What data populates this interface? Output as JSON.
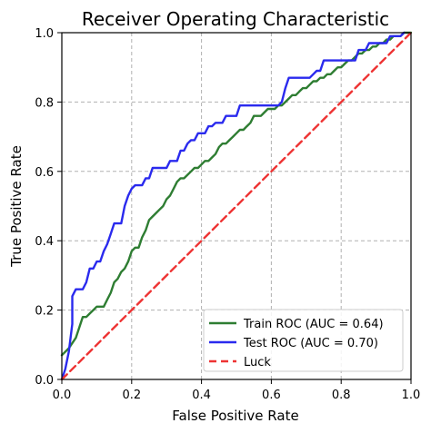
{
  "chart_data": {
    "type": "line",
    "title": "Receiver Operating Characteristic",
    "xlabel": "False Positive Rate",
    "ylabel": "True Positive Rate",
    "xlim": [
      0,
      1
    ],
    "ylim": [
      0,
      1
    ],
    "xticks": [
      "0.0",
      "0.2",
      "0.4",
      "0.6",
      "0.8",
      "1.0"
    ],
    "yticks": [
      "0.0",
      "0.2",
      "0.4",
      "0.6",
      "0.8",
      "1.0"
    ],
    "grid": true,
    "legend_position": "lower-right",
    "series": [
      {
        "name": "Train ROC (AUC = 0.64)",
        "color": "#2e7d32",
        "style": "solid",
        "x": [
          0.0,
          0.02,
          0.04,
          0.05,
          0.06,
          0.07,
          0.08,
          0.09,
          0.1,
          0.11,
          0.12,
          0.13,
          0.14,
          0.15,
          0.16,
          0.17,
          0.18,
          0.19,
          0.2,
          0.21,
          0.22,
          0.23,
          0.24,
          0.25,
          0.26,
          0.27,
          0.28,
          0.29,
          0.3,
          0.31,
          0.32,
          0.33,
          0.34,
          0.35,
          0.36,
          0.37,
          0.38,
          0.39,
          0.4,
          0.41,
          0.42,
          0.43,
          0.44,
          0.45,
          0.46,
          0.47,
          0.48,
          0.49,
          0.5,
          0.51,
          0.52,
          0.53,
          0.54,
          0.55,
          0.56,
          0.57,
          0.58,
          0.59,
          0.6,
          0.61,
          0.62,
          0.63,
          0.64,
          0.65,
          0.66,
          0.67,
          0.68,
          0.69,
          0.7,
          0.71,
          0.72,
          0.73,
          0.74,
          0.75,
          0.76,
          0.77,
          0.78,
          0.79,
          0.8,
          0.81,
          0.82,
          0.83,
          0.84,
          0.85,
          0.86,
          0.87,
          0.88,
          0.89,
          0.9,
          0.91,
          0.92,
          0.93,
          0.94,
          0.95,
          0.96,
          0.97,
          0.98,
          0.99,
          1.0
        ],
        "y": [
          0.07,
          0.09,
          0.12,
          0.15,
          0.18,
          0.18,
          0.19,
          0.2,
          0.21,
          0.21,
          0.21,
          0.23,
          0.25,
          0.28,
          0.29,
          0.31,
          0.32,
          0.34,
          0.37,
          0.38,
          0.38,
          0.41,
          0.43,
          0.46,
          0.47,
          0.48,
          0.49,
          0.5,
          0.52,
          0.53,
          0.55,
          0.57,
          0.58,
          0.58,
          0.59,
          0.6,
          0.61,
          0.61,
          0.62,
          0.63,
          0.63,
          0.64,
          0.65,
          0.67,
          0.68,
          0.68,
          0.69,
          0.7,
          0.71,
          0.72,
          0.72,
          0.73,
          0.74,
          0.76,
          0.76,
          0.76,
          0.77,
          0.78,
          0.78,
          0.78,
          0.79,
          0.79,
          0.8,
          0.81,
          0.82,
          0.82,
          0.83,
          0.84,
          0.84,
          0.85,
          0.86,
          0.86,
          0.87,
          0.87,
          0.88,
          0.88,
          0.89,
          0.9,
          0.9,
          0.91,
          0.92,
          0.92,
          0.93,
          0.94,
          0.94,
          0.95,
          0.95,
          0.96,
          0.96,
          0.97,
          0.97,
          0.98,
          0.98,
          0.99,
          0.99,
          0.99,
          1.0,
          1.0,
          1.0
        ]
      },
      {
        "name": "Test ROC (AUC = 0.70)",
        "color": "#2a2aee",
        "style": "solid",
        "x": [
          0.0,
          0.01,
          0.02,
          0.03,
          0.03,
          0.04,
          0.05,
          0.06,
          0.07,
          0.08,
          0.09,
          0.1,
          0.11,
          0.12,
          0.13,
          0.14,
          0.15,
          0.16,
          0.17,
          0.18,
          0.19,
          0.2,
          0.21,
          0.22,
          0.23,
          0.24,
          0.25,
          0.26,
          0.27,
          0.28,
          0.29,
          0.3,
          0.31,
          0.32,
          0.33,
          0.34,
          0.35,
          0.36,
          0.37,
          0.38,
          0.39,
          0.4,
          0.41,
          0.42,
          0.43,
          0.44,
          0.45,
          0.46,
          0.47,
          0.48,
          0.49,
          0.5,
          0.51,
          0.52,
          0.53,
          0.54,
          0.55,
          0.56,
          0.57,
          0.58,
          0.59,
          0.6,
          0.61,
          0.62,
          0.63,
          0.64,
          0.65,
          0.66,
          0.67,
          0.68,
          0.69,
          0.7,
          0.71,
          0.72,
          0.73,
          0.74,
          0.75,
          0.76,
          0.77,
          0.78,
          0.79,
          0.8,
          0.81,
          0.82,
          0.83,
          0.84,
          0.85,
          0.86,
          0.87,
          0.88,
          0.89,
          0.9,
          0.91,
          0.92,
          0.93,
          0.94,
          0.95,
          0.96,
          0.97,
          0.98
        ],
        "y": [
          0.0,
          0.03,
          0.08,
          0.16,
          0.24,
          0.26,
          0.26,
          0.26,
          0.28,
          0.32,
          0.32,
          0.34,
          0.34,
          0.37,
          0.39,
          0.42,
          0.45,
          0.45,
          0.45,
          0.5,
          0.53,
          0.55,
          0.56,
          0.56,
          0.56,
          0.58,
          0.58,
          0.61,
          0.61,
          0.61,
          0.61,
          0.61,
          0.63,
          0.63,
          0.63,
          0.66,
          0.66,
          0.68,
          0.69,
          0.69,
          0.71,
          0.71,
          0.71,
          0.73,
          0.73,
          0.74,
          0.74,
          0.74,
          0.76,
          0.76,
          0.76,
          0.76,
          0.79,
          0.79,
          0.79,
          0.79,
          0.79,
          0.79,
          0.79,
          0.79,
          0.79,
          0.79,
          0.79,
          0.79,
          0.8,
          0.84,
          0.87,
          0.87,
          0.87,
          0.87,
          0.87,
          0.87,
          0.87,
          0.88,
          0.89,
          0.89,
          0.92,
          0.92,
          0.92,
          0.92,
          0.92,
          0.92,
          0.92,
          0.92,
          0.92,
          0.92,
          0.95,
          0.95,
          0.95,
          0.97,
          0.97,
          0.97,
          0.97,
          0.97,
          0.97,
          0.99,
          0.99,
          0.99,
          0.99,
          1.0
        ]
      },
      {
        "name": "Luck",
        "color": "#ee3333",
        "style": "dashed",
        "x": [
          0.0,
          1.0
        ],
        "y": [
          0.0,
          1.0
        ]
      }
    ]
  }
}
